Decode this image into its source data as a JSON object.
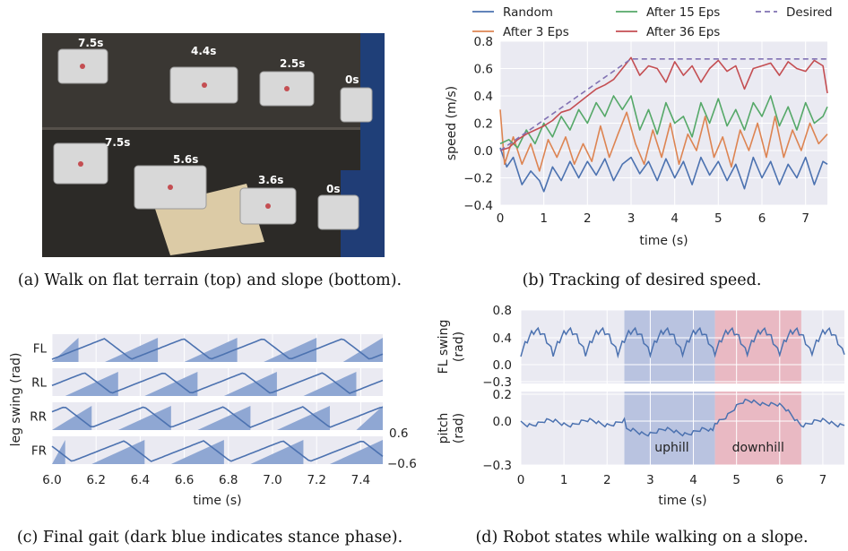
{
  "figure": {
    "caption_a": "(a) Walk on flat terrain (top) and slope (bottom).",
    "caption_b": "(b) Tracking of desired speed.",
    "caption_c": "(c) Final gait (dark blue indicates stance phase).",
    "caption_d": "(d) Robot states while walking on a slope."
  },
  "photo": {
    "top_labels": [
      "7.5s",
      "4.4s",
      "2.5s",
      "0s"
    ],
    "bottom_labels": [
      "7.5s",
      "5.6s",
      "3.6s",
      "0s"
    ]
  },
  "colors": {
    "random": "#4c72b0",
    "after3": "#dd8452",
    "after15": "#55a868",
    "after36": "#c44e52",
    "desired": "#8172b3",
    "plot_bg": "#eaeaf2",
    "stance": "#8fa7d3",
    "uphill": "#b9c3e0",
    "downhill": "#e9b9c3"
  },
  "chart_data": [
    {
      "id": "b",
      "type": "line",
      "xlabel": "time (s)",
      "ylabel": "speed (m/s)",
      "xlim": [
        0,
        7.5
      ],
      "ylim": [
        -0.4,
        0.8
      ],
      "xticks": [
        "0",
        "1",
        "2",
        "3",
        "4",
        "5",
        "6",
        "7"
      ],
      "yticks": [
        "−0.4",
        "−0.2",
        "0.0",
        "0.2",
        "0.4",
        "0.6",
        "0.8"
      ],
      "legend_position": "top",
      "series": [
        {
          "name": "Random",
          "color": "#4c72b0",
          "x": [
            0,
            0.15,
            0.3,
            0.5,
            0.7,
            0.9,
            1.0,
            1.2,
            1.4,
            1.6,
            1.8,
            2.0,
            2.2,
            2.4,
            2.6,
            2.8,
            3.0,
            3.2,
            3.4,
            3.6,
            3.8,
            4.0,
            4.2,
            4.4,
            4.6,
            4.8,
            5.0,
            5.2,
            5.4,
            5.6,
            5.8,
            6.0,
            6.2,
            6.4,
            6.6,
            6.8,
            7.0,
            7.2,
            7.4,
            7.5
          ],
          "y": [
            0.02,
            -0.12,
            -0.05,
            -0.25,
            -0.15,
            -0.22,
            -0.3,
            -0.12,
            -0.22,
            -0.08,
            -0.2,
            -0.08,
            -0.18,
            -0.06,
            -0.22,
            -0.1,
            -0.05,
            -0.17,
            -0.08,
            -0.22,
            -0.06,
            -0.2,
            -0.08,
            -0.25,
            -0.05,
            -0.18,
            -0.08,
            -0.22,
            -0.1,
            -0.28,
            -0.05,
            -0.2,
            -0.08,
            -0.25,
            -0.1,
            -0.2,
            -0.05,
            -0.25,
            -0.08,
            -0.1
          ]
        },
        {
          "name": "After 3 Eps",
          "color": "#dd8452",
          "x": [
            0,
            0.1,
            0.3,
            0.5,
            0.7,
            0.9,
            1.1,
            1.3,
            1.5,
            1.7,
            1.9,
            2.1,
            2.3,
            2.5,
            2.7,
            2.9,
            3.1,
            3.3,
            3.5,
            3.7,
            3.9,
            4.1,
            4.3,
            4.5,
            4.7,
            4.9,
            5.1,
            5.3,
            5.5,
            5.7,
            5.9,
            6.1,
            6.3,
            6.5,
            6.7,
            6.9,
            7.1,
            7.3,
            7.5
          ],
          "y": [
            0.3,
            -0.1,
            0.1,
            -0.1,
            0.05,
            -0.15,
            0.08,
            -0.05,
            0.1,
            -0.1,
            0.05,
            -0.08,
            0.18,
            -0.05,
            0.12,
            0.28,
            0.05,
            -0.1,
            0.15,
            -0.05,
            0.2,
            -0.1,
            0.12,
            0.0,
            0.25,
            -0.05,
            0.1,
            -0.12,
            0.15,
            0.0,
            0.2,
            -0.05,
            0.25,
            -0.05,
            0.15,
            0.0,
            0.2,
            0.05,
            0.12
          ]
        },
        {
          "name": "After 15 Eps",
          "color": "#55a868",
          "x": [
            0,
            0.2,
            0.4,
            0.6,
            0.8,
            1.0,
            1.2,
            1.4,
            1.6,
            1.8,
            2.0,
            2.2,
            2.4,
            2.6,
            2.8,
            3.0,
            3.2,
            3.4,
            3.6,
            3.8,
            4.0,
            4.2,
            4.4,
            4.6,
            4.8,
            5.0,
            5.2,
            5.4,
            5.6,
            5.8,
            6.0,
            6.2,
            6.4,
            6.6,
            6.8,
            7.0,
            7.2,
            7.4,
            7.5
          ],
          "y": [
            0.05,
            0.08,
            0.02,
            0.15,
            0.05,
            0.2,
            0.1,
            0.25,
            0.15,
            0.3,
            0.2,
            0.35,
            0.25,
            0.4,
            0.3,
            0.4,
            0.15,
            0.3,
            0.12,
            0.35,
            0.2,
            0.25,
            0.1,
            0.35,
            0.2,
            0.38,
            0.18,
            0.3,
            0.15,
            0.35,
            0.25,
            0.4,
            0.18,
            0.32,
            0.15,
            0.35,
            0.2,
            0.25,
            0.32
          ]
        },
        {
          "name": "After 36 Eps",
          "color": "#c44e52",
          "x": [
            0,
            0.2,
            0.4,
            0.6,
            0.8,
            1.0,
            1.2,
            1.4,
            1.6,
            1.8,
            2.0,
            2.2,
            2.4,
            2.6,
            2.8,
            3.0,
            3.2,
            3.4,
            3.6,
            3.8,
            4.0,
            4.2,
            4.4,
            4.6,
            4.8,
            5.0,
            5.2,
            5.4,
            5.6,
            5.8,
            6.0,
            6.2,
            6.4,
            6.6,
            6.8,
            7.0,
            7.2,
            7.4,
            7.5
          ],
          "y": [
            0.0,
            0.02,
            0.08,
            0.12,
            0.15,
            0.18,
            0.22,
            0.28,
            0.3,
            0.35,
            0.4,
            0.45,
            0.48,
            0.52,
            0.6,
            0.68,
            0.55,
            0.62,
            0.6,
            0.5,
            0.65,
            0.55,
            0.62,
            0.5,
            0.6,
            0.66,
            0.58,
            0.62,
            0.45,
            0.6,
            0.62,
            0.64,
            0.55,
            0.65,
            0.6,
            0.58,
            0.66,
            0.62,
            0.42
          ]
        },
        {
          "name": "Desired",
          "color": "#8172b3",
          "dashed": true,
          "x": [
            0,
            3.0,
            7.5
          ],
          "y": [
            0.0,
            0.67,
            0.67
          ]
        }
      ]
    },
    {
      "id": "c",
      "type": "area",
      "xlabel": "time (s)",
      "ylabel": "leg swing (rad)",
      "xlim": [
        6.0,
        7.5
      ],
      "xticks": [
        "6.0",
        "6.2",
        "6.4",
        "6.6",
        "6.8",
        "7.0",
        "7.2",
        "7.4"
      ],
      "yright_ticks": [
        "0.6",
        "−0.6"
      ],
      "legs": [
        "FL",
        "RL",
        "RR",
        "FR"
      ],
      "stance_intervals": {
        "FL": [
          [
            6.0,
            6.12
          ],
          [
            6.24,
            6.48
          ],
          [
            6.6,
            6.84
          ],
          [
            6.96,
            7.2
          ],
          [
            7.32,
            7.5
          ]
        ],
        "RL": [
          [
            6.06,
            6.3
          ],
          [
            6.42,
            6.66
          ],
          [
            6.78,
            7.02
          ],
          [
            7.14,
            7.38
          ]
        ],
        "RR": [
          [
            6.0,
            6.18
          ],
          [
            6.3,
            6.54
          ],
          [
            6.66,
            6.9
          ],
          [
            7.02,
            7.26
          ],
          [
            7.38,
            7.5
          ]
        ],
        "FR": [
          [
            6.0,
            6.06
          ],
          [
            6.18,
            6.42
          ],
          [
            6.54,
            6.78
          ],
          [
            6.9,
            7.14
          ],
          [
            7.26,
            7.5
          ]
        ]
      }
    },
    {
      "id": "d",
      "type": "line",
      "xlabel": "time (s)",
      "xlim": [
        0,
        7.5
      ],
      "xticks": [
        "0",
        "1",
        "2",
        "3",
        "4",
        "5",
        "6",
        "7"
      ],
      "top": {
        "ylabel": "FL swing\n(rad)",
        "yticks": [
          "0.8",
          "0.4",
          "0.0",
          "−0.3"
        ],
        "ylim": [
          -0.3,
          0.8
        ]
      },
      "bottom": {
        "ylabel": "pitch\n(rad)",
        "yticks": [
          "0.2",
          "0.0",
          "−0.3"
        ],
        "ylim": [
          -0.3,
          0.2
        ]
      },
      "annotations": [
        "uphill",
        "downhill"
      ],
      "uphill": [
        2.4,
        4.5
      ],
      "downhill": [
        4.5,
        6.5
      ]
    }
  ]
}
